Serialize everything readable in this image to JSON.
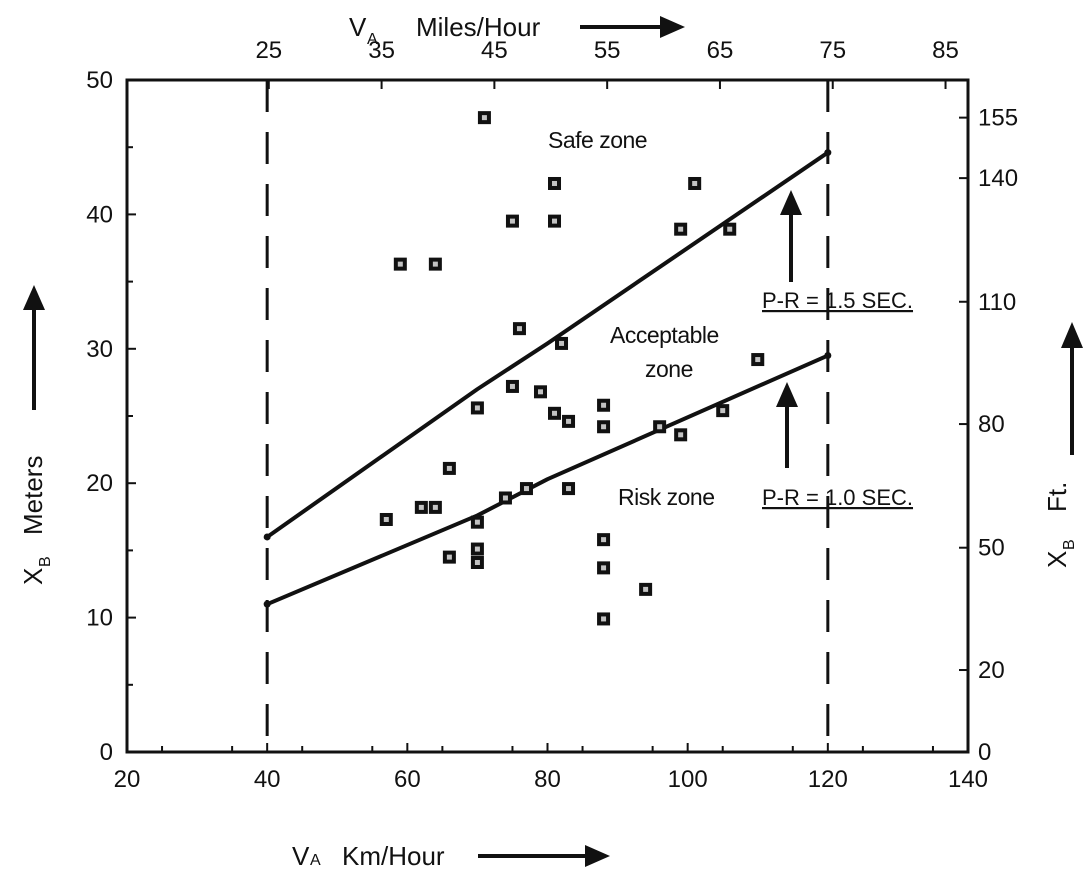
{
  "chart_data": {
    "type": "scatter",
    "x_axis": {
      "label_main": "V",
      "label_sub": "A",
      "label_unit": "Km/Hour",
      "range": [
        20,
        140
      ],
      "ticks": [
        20,
        40,
        60,
        80,
        100,
        120,
        140
      ],
      "tick_labels": [
        "20",
        "40",
        "60",
        "80",
        "100",
        "120",
        "140"
      ]
    },
    "x2_axis": {
      "label_main": "V",
      "label_sub": "A",
      "label_unit": "Miles/Hour",
      "ticks": [
        25,
        35,
        45,
        55,
        65,
        75,
        85
      ],
      "tick_labels": [
        "25",
        "35",
        "45",
        "55",
        "65",
        "75",
        "85"
      ]
    },
    "y_axis": {
      "label_main": "X",
      "label_sub": "B",
      "label_unit": "Meters",
      "range": [
        0,
        50
      ],
      "ticks": [
        0,
        10,
        20,
        30,
        40,
        50
      ],
      "tick_labels": [
        "0",
        "10",
        "20",
        "30",
        "40",
        "50"
      ]
    },
    "y2_axis": {
      "label_main": "X",
      "label_sub": "B",
      "label_unit": "Ft.",
      "ticks_meters": [
        0,
        6.1,
        15.2,
        24.4,
        33.5,
        42.7,
        47.2
      ],
      "tick_labels": [
        "0",
        "20",
        "50",
        "80",
        "110",
        "140",
        "155"
      ]
    },
    "vertical_dashed_lines": [
      40,
      120
    ],
    "lines": [
      {
        "label": "P-R = 1.5 SEC.",
        "points": [
          [
            40,
            16.0
          ],
          [
            70,
            27.0
          ],
          [
            80,
            30.4
          ],
          [
            120,
            44.6
          ]
        ]
      },
      {
        "label": "P-R = 1.0 SEC.",
        "points": [
          [
            40,
            11.0
          ],
          [
            70,
            17.6
          ],
          [
            80,
            20.3
          ],
          [
            120,
            29.5
          ]
        ]
      }
    ],
    "points": [
      [
        71,
        47.2
      ],
      [
        81,
        42.3
      ],
      [
        101,
        42.3
      ],
      [
        75,
        39.5
      ],
      [
        81,
        39.5
      ],
      [
        99,
        38.9
      ],
      [
        106,
        38.9
      ],
      [
        59,
        36.3
      ],
      [
        64,
        36.3
      ],
      [
        76,
        31.5
      ],
      [
        82,
        30.4
      ],
      [
        110,
        29.2
      ],
      [
        75,
        27.2
      ],
      [
        79,
        26.8
      ],
      [
        70,
        25.6
      ],
      [
        81,
        25.2
      ],
      [
        83,
        24.6
      ],
      [
        88,
        25.8
      ],
      [
        88,
        24.2
      ],
      [
        96,
        24.2
      ],
      [
        99,
        23.6
      ],
      [
        105,
        25.4
      ],
      [
        66,
        21.1
      ],
      [
        62,
        18.2
      ],
      [
        64,
        18.2
      ],
      [
        57,
        17.3
      ],
      [
        70,
        17.1
      ],
      [
        74,
        18.9
      ],
      [
        77,
        19.6
      ],
      [
        83,
        19.6
      ],
      [
        66,
        14.5
      ],
      [
        70,
        15.1
      ],
      [
        70,
        14.1
      ],
      [
        88,
        15.8
      ],
      [
        88,
        13.7
      ],
      [
        94,
        12.1
      ],
      [
        88,
        9.9
      ]
    ],
    "annotations": [
      {
        "text": "Safe zone"
      },
      {
        "text": "Acceptable"
      },
      {
        "text": "zone"
      },
      {
        "text": "Risk zone"
      }
    ],
    "legend_labels": [
      "P-R = 1.5 SEC.",
      "P-R = 1.0 SEC."
    ],
    "grid": false
  }
}
